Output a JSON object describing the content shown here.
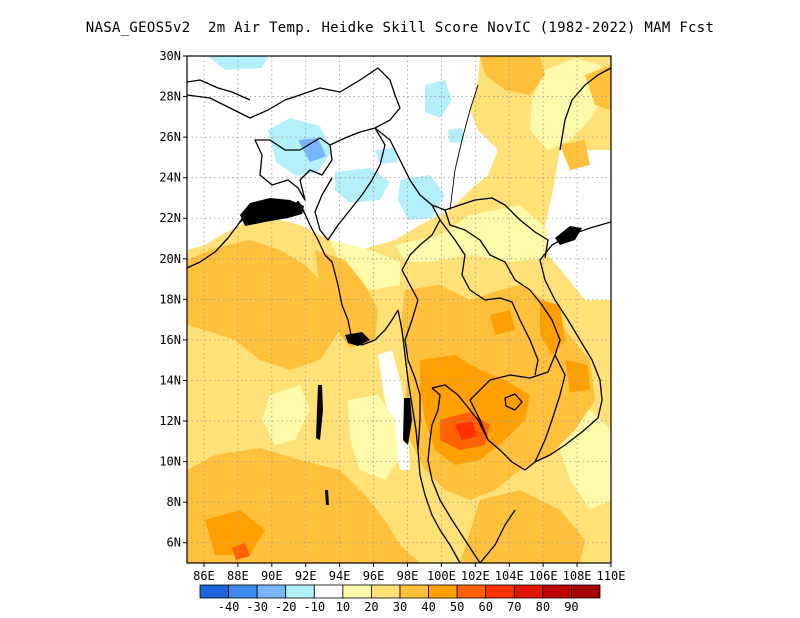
{
  "title": "NASA_GEOS5v2  2m Air Temp. Heidke Skill Score NovIC (1982-2022) MAM Fcst",
  "map": {
    "lon_range": [
      85,
      110
    ],
    "lat_range": [
      5,
      30
    ],
    "lat_labels": [
      {
        "value": 30,
        "text": "30N"
      },
      {
        "value": 28,
        "text": "28N"
      },
      {
        "value": 26,
        "text": "26N"
      },
      {
        "value": 24,
        "text": "24N"
      },
      {
        "value": 22,
        "text": "22N"
      },
      {
        "value": 20,
        "text": "20N"
      },
      {
        "value": 18,
        "text": "18N"
      },
      {
        "value": 16,
        "text": "16N"
      },
      {
        "value": 14,
        "text": "14N"
      },
      {
        "value": 12,
        "text": "12N"
      },
      {
        "value": 10,
        "text": "10N"
      },
      {
        "value": 8,
        "text": "8N"
      },
      {
        "value": 6,
        "text": "6N"
      }
    ],
    "lon_labels": [
      {
        "value": 86,
        "text": "86E"
      },
      {
        "value": 88,
        "text": "88E"
      },
      {
        "value": 90,
        "text": "90E"
      },
      {
        "value": 92,
        "text": "92E"
      },
      {
        "value": 94,
        "text": "94E"
      },
      {
        "value": 96,
        "text": "96E"
      },
      {
        "value": 98,
        "text": "98E"
      },
      {
        "value": 100,
        "text": "100E"
      },
      {
        "value": 102,
        "text": "102E"
      },
      {
        "value": 104,
        "text": "104E"
      },
      {
        "value": 106,
        "text": "106E"
      },
      {
        "value": 108,
        "text": "108E"
      },
      {
        "value": 110,
        "text": "110E"
      }
    ],
    "gridlines": "dotted gray every 2 degrees"
  },
  "colorbar": {
    "bins": [
      {
        "color": "#1e64dc",
        "label": "-40"
      },
      {
        "color": "#3c8cf0",
        "label": "-30"
      },
      {
        "color": "#78b4f8",
        "label": "-20"
      },
      {
        "color": "#b4f0fa",
        "label": "-10"
      },
      {
        "color": "#ffffff",
        "label": "10"
      },
      {
        "color": "#fffaaa",
        "label": "20"
      },
      {
        "color": "#ffe178",
        "label": "30"
      },
      {
        "color": "#ffc03c",
        "label": "40"
      },
      {
        "color": "#ffa000",
        "label": "50"
      },
      {
        "color": "#ff6000",
        "label": "60"
      },
      {
        "color": "#ff3200",
        "label": "70"
      },
      {
        "color": "#e11400",
        "label": "80"
      },
      {
        "color": "#c00000",
        "label": "90"
      },
      {
        "color": "#a50000",
        "label": ""
      }
    ]
  }
}
